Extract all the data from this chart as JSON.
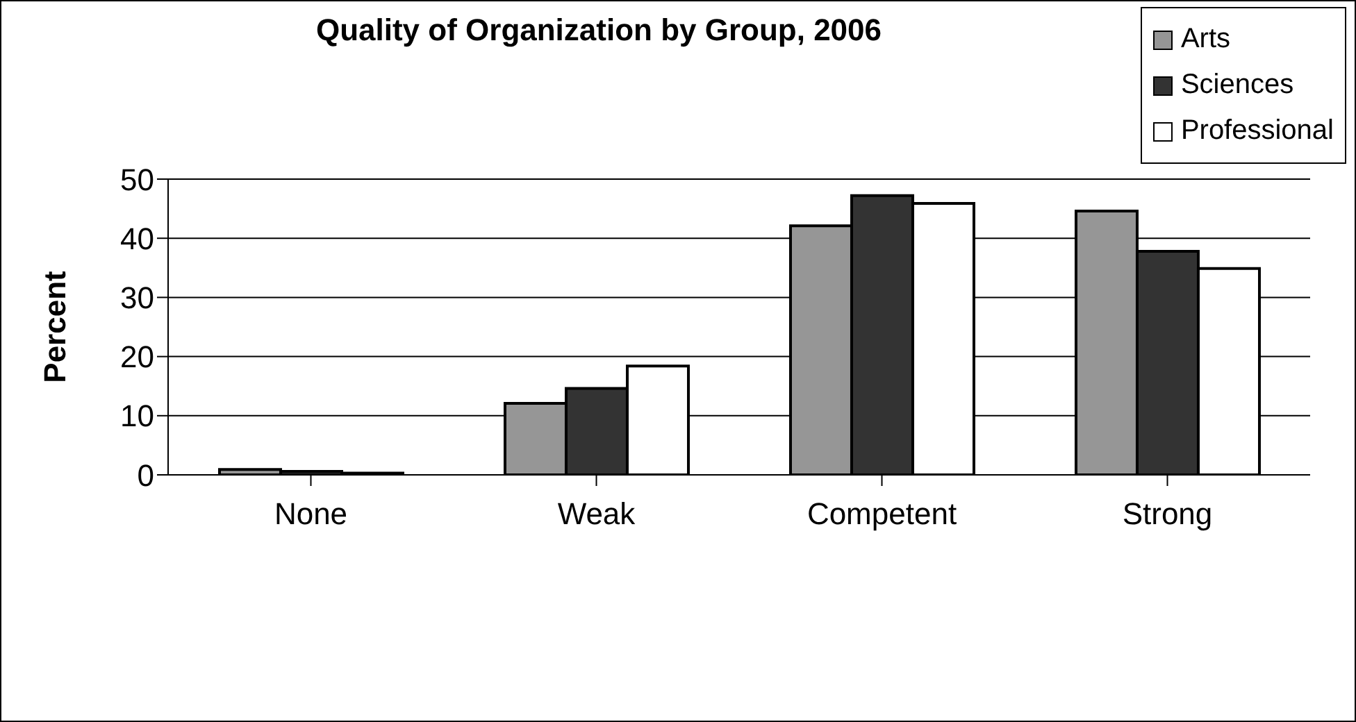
{
  "chart_data": {
    "type": "bar",
    "title": "Quality of Organization by Group, 2006",
    "ylabel": "Percent",
    "categories": [
      "None",
      "Weak",
      "Competent",
      "Strong"
    ],
    "series": [
      {
        "name": "Arts",
        "color": "#969696",
        "values": [
          0.9,
          12.1,
          42.1,
          44.6
        ]
      },
      {
        "name": "Sciences",
        "color": "#333333",
        "values": [
          0.6,
          14.6,
          47.2,
          37.8
        ]
      },
      {
        "name": "Professional",
        "color": "#ffffff",
        "values": [
          0.3,
          18.4,
          45.9,
          34.9
        ]
      }
    ],
    "ylim": [
      0,
      50
    ],
    "yticks": [
      0,
      10,
      20,
      30,
      40,
      50
    ],
    "grid": "y",
    "legend": "top right"
  }
}
